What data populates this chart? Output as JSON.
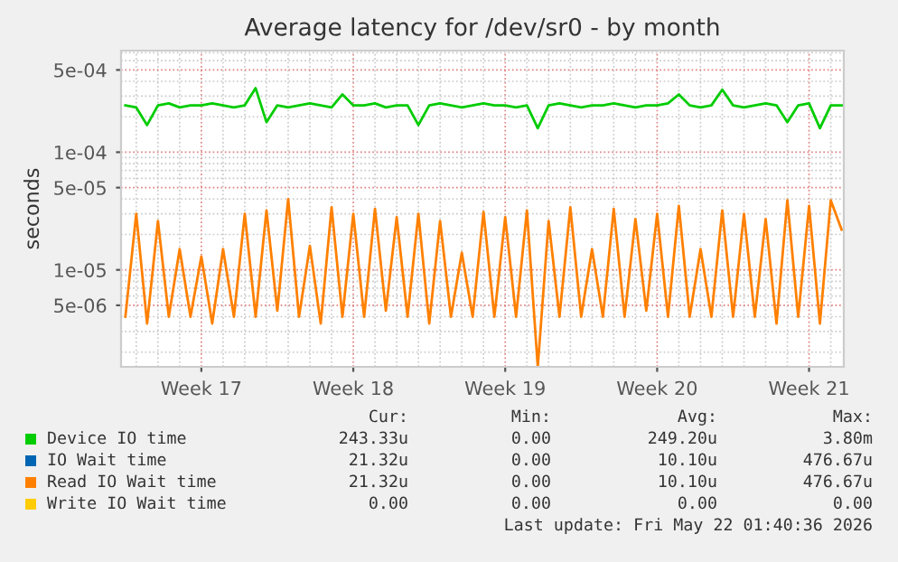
{
  "chart_data": {
    "type": "line",
    "title": "Average latency for /dev/sr0 - by month",
    "ylabel": "seconds",
    "log": "y",
    "grid": true,
    "legend": "bottom",
    "marker": "none",
    "line_style": "solid",
    "xlim": [
      "2026-04-16T07:12",
      "2026-05-19T14:24"
    ],
    "xticks": [
      {
        "value": "2026-04-20",
        "label": "Week 17"
      },
      {
        "value": "2026-04-27",
        "label": "Week 18"
      },
      {
        "value": "2026-05-04",
        "label": "Week 19"
      },
      {
        "value": "2026-05-11",
        "label": "Week 20"
      },
      {
        "value": "2026-05-18",
        "label": "Week 21"
      }
    ],
    "ylim": [
      1.5e-06,
      0.00073
    ],
    "yticks": [
      {
        "value": 0.0005,
        "label": "5e-04"
      },
      {
        "value": 0.0001,
        "label": "1e-04"
      },
      {
        "value": 5e-05,
        "label": "5e-05"
      },
      {
        "value": 1e-05,
        "label": "1e-05"
      },
      {
        "value": 5e-06,
        "label": "5e-06"
      }
    ],
    "x": [
      "2026-04-16T12:00",
      "2026-04-17T00:00",
      "2026-04-17T12:00",
      "2026-04-18T00:00",
      "2026-04-18T12:00",
      "2026-04-19T00:00",
      "2026-04-19T12:00",
      "2026-04-20T00:00",
      "2026-04-20T12:00",
      "2026-04-21T00:00",
      "2026-04-21T12:00",
      "2026-04-22T00:00",
      "2026-04-22T12:00",
      "2026-04-23T00:00",
      "2026-04-23T12:00",
      "2026-04-24T00:00",
      "2026-04-24T12:00",
      "2026-04-25T00:00",
      "2026-04-25T12:00",
      "2026-04-26T00:00",
      "2026-04-26T12:00",
      "2026-04-27T00:00",
      "2026-04-27T12:00",
      "2026-04-28T00:00",
      "2026-04-28T12:00",
      "2026-04-29T00:00",
      "2026-04-29T12:00",
      "2026-04-30T00:00",
      "2026-04-30T12:00",
      "2026-05-01T00:00",
      "2026-05-01T12:00",
      "2026-05-02T00:00",
      "2026-05-02T12:00",
      "2026-05-03T00:00",
      "2026-05-03T12:00",
      "2026-05-04T00:00",
      "2026-05-04T12:00",
      "2026-05-05T00:00",
      "2026-05-05T12:00",
      "2026-05-06T00:00",
      "2026-05-06T12:00",
      "2026-05-07T00:00",
      "2026-05-07T12:00",
      "2026-05-08T00:00",
      "2026-05-08T12:00",
      "2026-05-09T00:00",
      "2026-05-09T12:00",
      "2026-05-10T00:00",
      "2026-05-10T12:00",
      "2026-05-11T00:00",
      "2026-05-11T12:00",
      "2026-05-12T00:00",
      "2026-05-12T12:00",
      "2026-05-13T00:00",
      "2026-05-13T12:00",
      "2026-05-14T00:00",
      "2026-05-14T12:00",
      "2026-05-15T00:00",
      "2026-05-15T12:00",
      "2026-05-16T00:00",
      "2026-05-16T12:00",
      "2026-05-17T00:00",
      "2026-05-17T12:00",
      "2026-05-18T00:00",
      "2026-05-18T12:00",
      "2026-05-19T00:00",
      "2026-05-19T12:00"
    ],
    "series": [
      {
        "name": "Device IO time",
        "color": "#00cc00",
        "values": [
          0.00025,
          0.00024,
          0.00017,
          0.00025,
          0.00026,
          0.00024,
          0.00025,
          0.00025,
          0.00026,
          0.00025,
          0.00024,
          0.00025,
          0.00035,
          0.00018,
          0.00025,
          0.00024,
          0.00025,
          0.00026,
          0.00025,
          0.00024,
          0.00031,
          0.00025,
          0.00025,
          0.00026,
          0.00024,
          0.00025,
          0.00025,
          0.00017,
          0.00025,
          0.00026,
          0.00025,
          0.00024,
          0.00025,
          0.00026,
          0.00025,
          0.00025,
          0.00024,
          0.00025,
          0.00016,
          0.00025,
          0.00026,
          0.00025,
          0.00024,
          0.00025,
          0.00025,
          0.00026,
          0.00025,
          0.00024,
          0.00025,
          0.00025,
          0.00026,
          0.00031,
          0.00025,
          0.00024,
          0.00025,
          0.00034,
          0.00025,
          0.00024,
          0.00025,
          0.00026,
          0.00025,
          0.00018,
          0.00025,
          0.00026,
          0.00016,
          0.00025,
          0.00025
        ]
      },
      {
        "name": "IO Wait time",
        "color": "#0066b3",
        "values": [
          null,
          null,
          null,
          null,
          null,
          null,
          null,
          null,
          null,
          null,
          null,
          null,
          null,
          null,
          null,
          null,
          null,
          null,
          null,
          null,
          null,
          null,
          null,
          null,
          null,
          null,
          null,
          null,
          null,
          null,
          null,
          null,
          null,
          null,
          null,
          null,
          null,
          null,
          null,
          null,
          null,
          null,
          null,
          null,
          null,
          null,
          null,
          null,
          null,
          null,
          null,
          null,
          null,
          null,
          null,
          null,
          null,
          null,
          null,
          null,
          null,
          null,
          null,
          null,
          null,
          null,
          null
        ]
      },
      {
        "name": "Read IO Wait time",
        "color": "#ff8000",
        "values": [
          4e-06,
          3e-05,
          3.5e-06,
          2.6e-05,
          4e-06,
          1.5e-05,
          4e-06,
          1.3e-05,
          3.5e-06,
          1.5e-05,
          4e-06,
          3e-05,
          4e-06,
          3.2e-05,
          4.5e-06,
          4e-05,
          4e-06,
          1.6e-05,
          3.5e-06,
          3.4e-05,
          4e-06,
          3e-05,
          4e-06,
          3.3e-05,
          4.5e-06,
          2.8e-05,
          4e-06,
          3e-05,
          3.5e-06,
          2.6e-05,
          4e-06,
          1.4e-05,
          4e-06,
          3.1e-05,
          4e-06,
          2.8e-05,
          4e-06,
          3.2e-05,
          1.5e-06,
          2.6e-05,
          4e-06,
          3.4e-05,
          4e-06,
          1.5e-05,
          4e-06,
          3.3e-05,
          4e-06,
          2.7e-05,
          4.5e-06,
          3e-05,
          4e-06,
          3.5e-05,
          4e-06,
          1.5e-05,
          4e-06,
          3.2e-05,
          4e-06,
          3e-05,
          4e-06,
          2.7e-05,
          3.5e-06,
          3.9e-05,
          4e-06,
          3.5e-05,
          3.5e-06,
          3.9e-05,
          2.2e-05
        ]
      },
      {
        "name": "Write IO Wait time",
        "color": "#ffcc00",
        "values": [
          null,
          null,
          null,
          null,
          null,
          null,
          null,
          null,
          null,
          null,
          null,
          null,
          null,
          null,
          null,
          null,
          null,
          null,
          null,
          null,
          null,
          null,
          null,
          null,
          null,
          null,
          null,
          null,
          null,
          null,
          null,
          null,
          null,
          null,
          null,
          null,
          null,
          null,
          null,
          null,
          null,
          null,
          null,
          null,
          null,
          null,
          null,
          null,
          null,
          null,
          null,
          null,
          null,
          null,
          null,
          null,
          null,
          null,
          null,
          null,
          null,
          null,
          null,
          null,
          null,
          null,
          null
        ]
      }
    ],
    "annotations": [
      "Cur:",
      "Min:",
      "Avg:",
      "Max:",
      "243.33u",
      "0.00",
      "249.20u",
      "3.80m",
      "21.32u",
      "0.00",
      "10.10u",
      "476.67u",
      "21.32u",
      "0.00",
      "10.10u",
      "476.67u",
      "0.00",
      "0.00",
      "0.00",
      "0.00",
      "Last update: Fri May 22 01:40:36 2026"
    ]
  }
}
